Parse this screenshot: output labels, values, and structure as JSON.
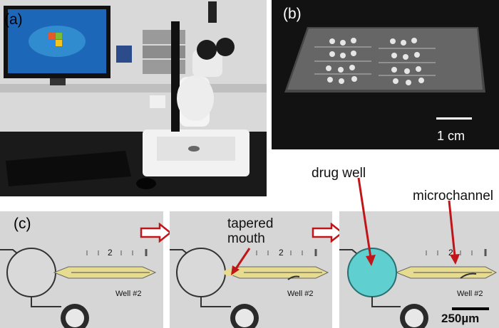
{
  "panel_a": {
    "label": "(a)"
  },
  "panel_b": {
    "label": "(b)",
    "scale_text": "1 cm"
  },
  "panel_c": {
    "label": "(c)",
    "frames": [
      {
        "tick_number": "2",
        "well_text": "Well #2"
      },
      {
        "tick_number": "2",
        "well_text": "Well #2"
      },
      {
        "tick_number": "2",
        "well_text": "Well #2"
      }
    ],
    "annotations": {
      "tapered_mouth": "tapered\nmouth",
      "drug_well": "drug well",
      "microchannel": "microchannel"
    },
    "scale_text": "250µm"
  },
  "colors": {
    "channel_yellow": "#e8d98a",
    "drug_cyan": "#5fcfd0",
    "arrow_red": "#c0161a",
    "desk_black": "#1a1a1a"
  }
}
